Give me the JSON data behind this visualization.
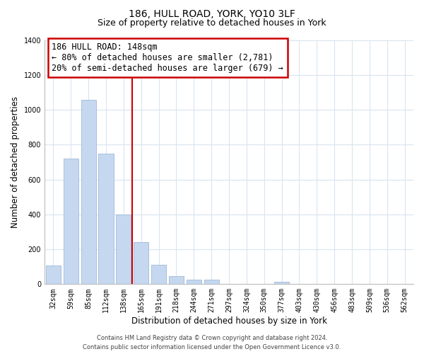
{
  "title": "186, HULL ROAD, YORK, YO10 3LF",
  "subtitle": "Size of property relative to detached houses in York",
  "xlabel": "Distribution of detached houses by size in York",
  "ylabel": "Number of detached properties",
  "bar_labels": [
    "32sqm",
    "59sqm",
    "85sqm",
    "112sqm",
    "138sqm",
    "165sqm",
    "191sqm",
    "218sqm",
    "244sqm",
    "271sqm",
    "297sqm",
    "324sqm",
    "350sqm",
    "377sqm",
    "403sqm",
    "430sqm",
    "456sqm",
    "483sqm",
    "509sqm",
    "536sqm",
    "562sqm"
  ],
  "bar_values": [
    108,
    720,
    1058,
    748,
    400,
    242,
    110,
    48,
    27,
    25,
    0,
    0,
    0,
    12,
    0,
    0,
    0,
    0,
    0,
    0,
    0
  ],
  "bar_color": "#c5d8f0",
  "bar_edge_color": "#a0b8d8",
  "vline_x": 4.5,
  "annotation_title": "186 HULL ROAD: 148sqm",
  "annotation_line1": "← 80% of detached houses are smaller (2,781)",
  "annotation_line2": "20% of semi-detached houses are larger (679) →",
  "annotation_box_color": "white",
  "annotation_box_edge_color": "#cc0000",
  "ylim": [
    0,
    1400
  ],
  "yticks": [
    0,
    200,
    400,
    600,
    800,
    1000,
    1200,
    1400
  ],
  "footer_line1": "Contains HM Land Registry data © Crown copyright and database right 2024.",
  "footer_line2": "Contains public sector information licensed under the Open Government Licence v3.0.",
  "bg_color": "white",
  "grid_color": "#d8e4f0",
  "title_fontsize": 10,
  "subtitle_fontsize": 9,
  "axis_label_fontsize": 8.5,
  "tick_fontsize": 7,
  "annot_fontsize": 8.5,
  "footer_fontsize": 6
}
